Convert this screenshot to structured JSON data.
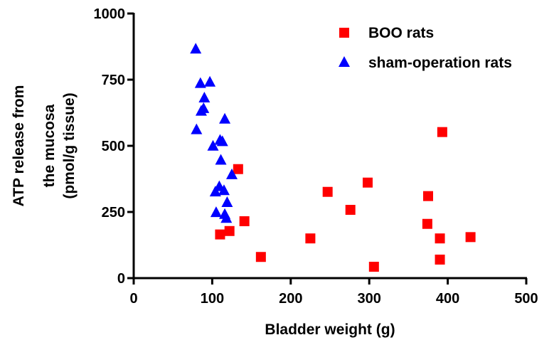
{
  "chart_data": {
    "type": "scatter",
    "title": "",
    "xlabel": "Bladder weight (g)",
    "ylabel_lines": [
      "ATP release from",
      "the mucosa",
      "(pmol/g tissue)"
    ],
    "xlim": [
      0,
      500
    ],
    "ylim": [
      0,
      1000
    ],
    "xticks": [
      0,
      100,
      200,
      300,
      400,
      500
    ],
    "yticks": [
      0,
      250,
      500,
      750,
      1000
    ],
    "grid": false,
    "legend_position": "top-right",
    "series": [
      {
        "name": "BOO rats",
        "marker": "square",
        "color": "#ff0000",
        "points": [
          [
            110,
            165
          ],
          [
            122,
            178
          ],
          [
            133,
            412
          ],
          [
            141,
            215
          ],
          [
            162,
            80
          ],
          [
            225,
            150
          ],
          [
            247,
            326
          ],
          [
            276,
            258
          ],
          [
            298,
            361
          ],
          [
            306,
            43
          ],
          [
            374,
            205
          ],
          [
            375,
            310
          ],
          [
            390,
            70
          ],
          [
            390,
            150
          ],
          [
            393,
            552
          ],
          [
            429,
            155
          ]
        ]
      },
      {
        "name": "sham-operation rats",
        "marker": "triangle",
        "color": "#0000ff",
        "points": [
          [
            79,
            865
          ],
          [
            80,
            560
          ],
          [
            85,
            735
          ],
          [
            86,
            630
          ],
          [
            89,
            640
          ],
          [
            90,
            680
          ],
          [
            97,
            740
          ],
          [
            101,
            498
          ],
          [
            104,
            325
          ],
          [
            105,
            247
          ],
          [
            109,
            345
          ],
          [
            110,
            520
          ],
          [
            111,
            445
          ],
          [
            113,
            515
          ],
          [
            115,
            330
          ],
          [
            116,
            600
          ],
          [
            116,
            240
          ],
          [
            118,
            225
          ],
          [
            119,
            285
          ],
          [
            125,
            390
          ]
        ]
      }
    ]
  }
}
